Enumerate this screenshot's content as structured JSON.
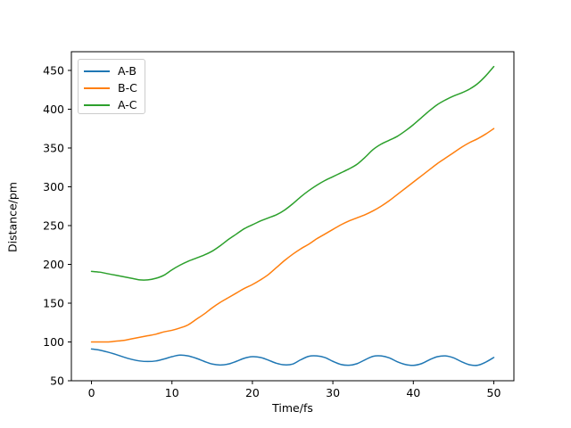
{
  "chart_data": {
    "type": "line",
    "title": "",
    "xlabel": "Time/fs",
    "ylabel": "Distance/pm",
    "x": [
      0,
      1,
      2,
      3,
      4,
      5,
      6,
      7,
      8,
      9,
      10,
      11,
      12,
      13,
      14,
      15,
      16,
      17,
      18,
      19,
      20,
      21,
      22,
      23,
      24,
      25,
      26,
      27,
      28,
      29,
      30,
      31,
      32,
      33,
      34,
      35,
      36,
      37,
      38,
      39,
      40,
      41,
      42,
      43,
      44,
      45,
      46,
      47,
      48,
      49,
      50
    ],
    "series": [
      {
        "name": "A-B",
        "color": "#1f77b4",
        "values": [
          91,
          89.5,
          87,
          84,
          80.5,
          77.5,
          75.5,
          74.8,
          75.5,
          78,
          81,
          83,
          82,
          79,
          75,
          71.5,
          70.3,
          71.5,
          75,
          79,
          81,
          80,
          76.5,
          72.5,
          70.5,
          71.5,
          77,
          81.5,
          82,
          80,
          75,
          71,
          70,
          72,
          77,
          81.5,
          82,
          79.5,
          74.5,
          71,
          69.8,
          72,
          77,
          81,
          82,
          79.5,
          74.5,
          70.5,
          70,
          74,
          80
        ]
      },
      {
        "name": "B-C",
        "color": "#ff7f0e",
        "values": [
          100,
          100,
          100,
          101,
          102,
          104,
          106,
          108,
          110,
          113,
          115,
          118,
          122,
          129,
          136,
          144,
          151,
          157,
          163,
          169,
          174,
          180,
          187,
          196,
          205,
          213,
          220,
          226,
          233,
          239,
          245,
          251,
          256,
          260,
          264,
          269,
          275,
          282,
          290,
          298,
          306,
          314,
          322,
          330,
          337,
          344,
          351,
          357,
          362,
          368,
          375
        ]
      },
      {
        "name": "A-C",
        "color": "#2ca02c",
        "values": [
          191,
          190,
          188,
          186,
          184,
          182,
          180,
          180,
          182,
          186,
          193,
          199,
          204,
          208,
          212,
          217,
          224,
          232,
          239,
          246,
          251,
          256,
          260,
          264,
          270,
          278,
          287,
          295,
          302,
          308,
          313,
          318,
          323,
          329,
          338,
          348,
          355,
          360,
          365,
          372,
          380,
          389,
          398,
          406,
          412,
          417,
          421,
          426,
          433,
          443,
          455
        ]
      }
    ],
    "xticks": [
      0,
      10,
      20,
      30,
      40,
      50
    ],
    "yticks": [
      50,
      100,
      150,
      200,
      250,
      300,
      350,
      400,
      450
    ],
    "xlim": [
      -2.5,
      52.5
    ],
    "ylim": [
      50,
      474.1
    ],
    "grid": false,
    "legend_position": "upper left",
    "background": "#ffffff",
    "axes_color": "#000000"
  }
}
